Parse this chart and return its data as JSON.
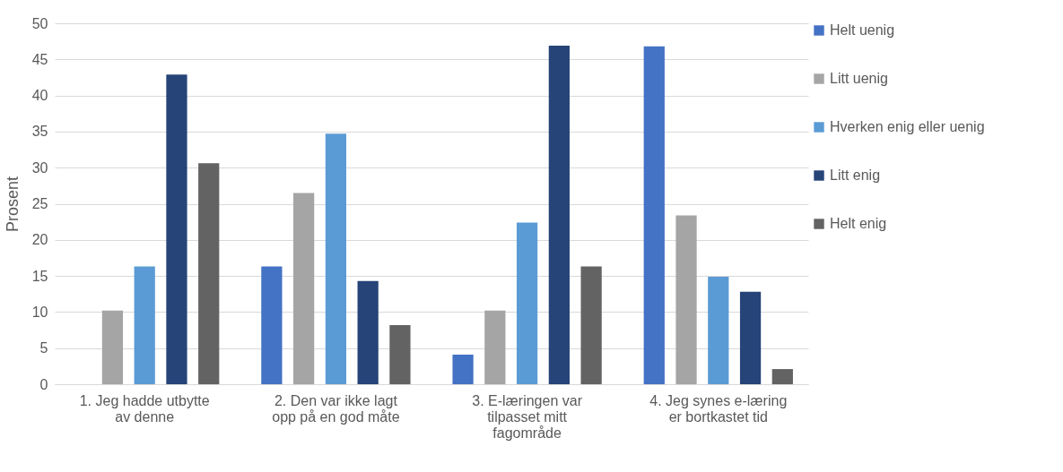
{
  "chart_data": {
    "type": "bar",
    "ylabel": "Prosent",
    "categories": [
      "1. Jeg hadde utbytte av denne",
      "2. Den var ikke lagt opp på en god måte",
      "3. E-læringen var tilpasset mitt fagområde",
      "4. Jeg synes e-læring er bortkastet tid"
    ],
    "series": [
      {
        "name": "Helt uenig",
        "color": "#4472c4",
        "values": [
          0,
          16.3,
          4.1,
          46.8
        ]
      },
      {
        "name": "Litt uenig",
        "color": "#a5a5a5",
        "values": [
          10.2,
          26.5,
          10.2,
          23.4
        ]
      },
      {
        "name": "Hverken enig eller uenig",
        "color": "#5b9bd5",
        "values": [
          16.3,
          34.7,
          22.4,
          14.9
        ]
      },
      {
        "name": "Litt enig",
        "color": "#264478",
        "values": [
          42.9,
          14.3,
          46.9,
          12.8
        ]
      },
      {
        "name": "Helt enig",
        "color": "#636363",
        "values": [
          30.6,
          8.2,
          16.3,
          2.1
        ]
      }
    ],
    "ylim": [
      0,
      50
    ],
    "yticks": [
      0,
      5,
      10,
      15,
      20,
      25,
      30,
      35,
      40,
      45,
      50
    ],
    "grid": "y",
    "legend": "right"
  }
}
